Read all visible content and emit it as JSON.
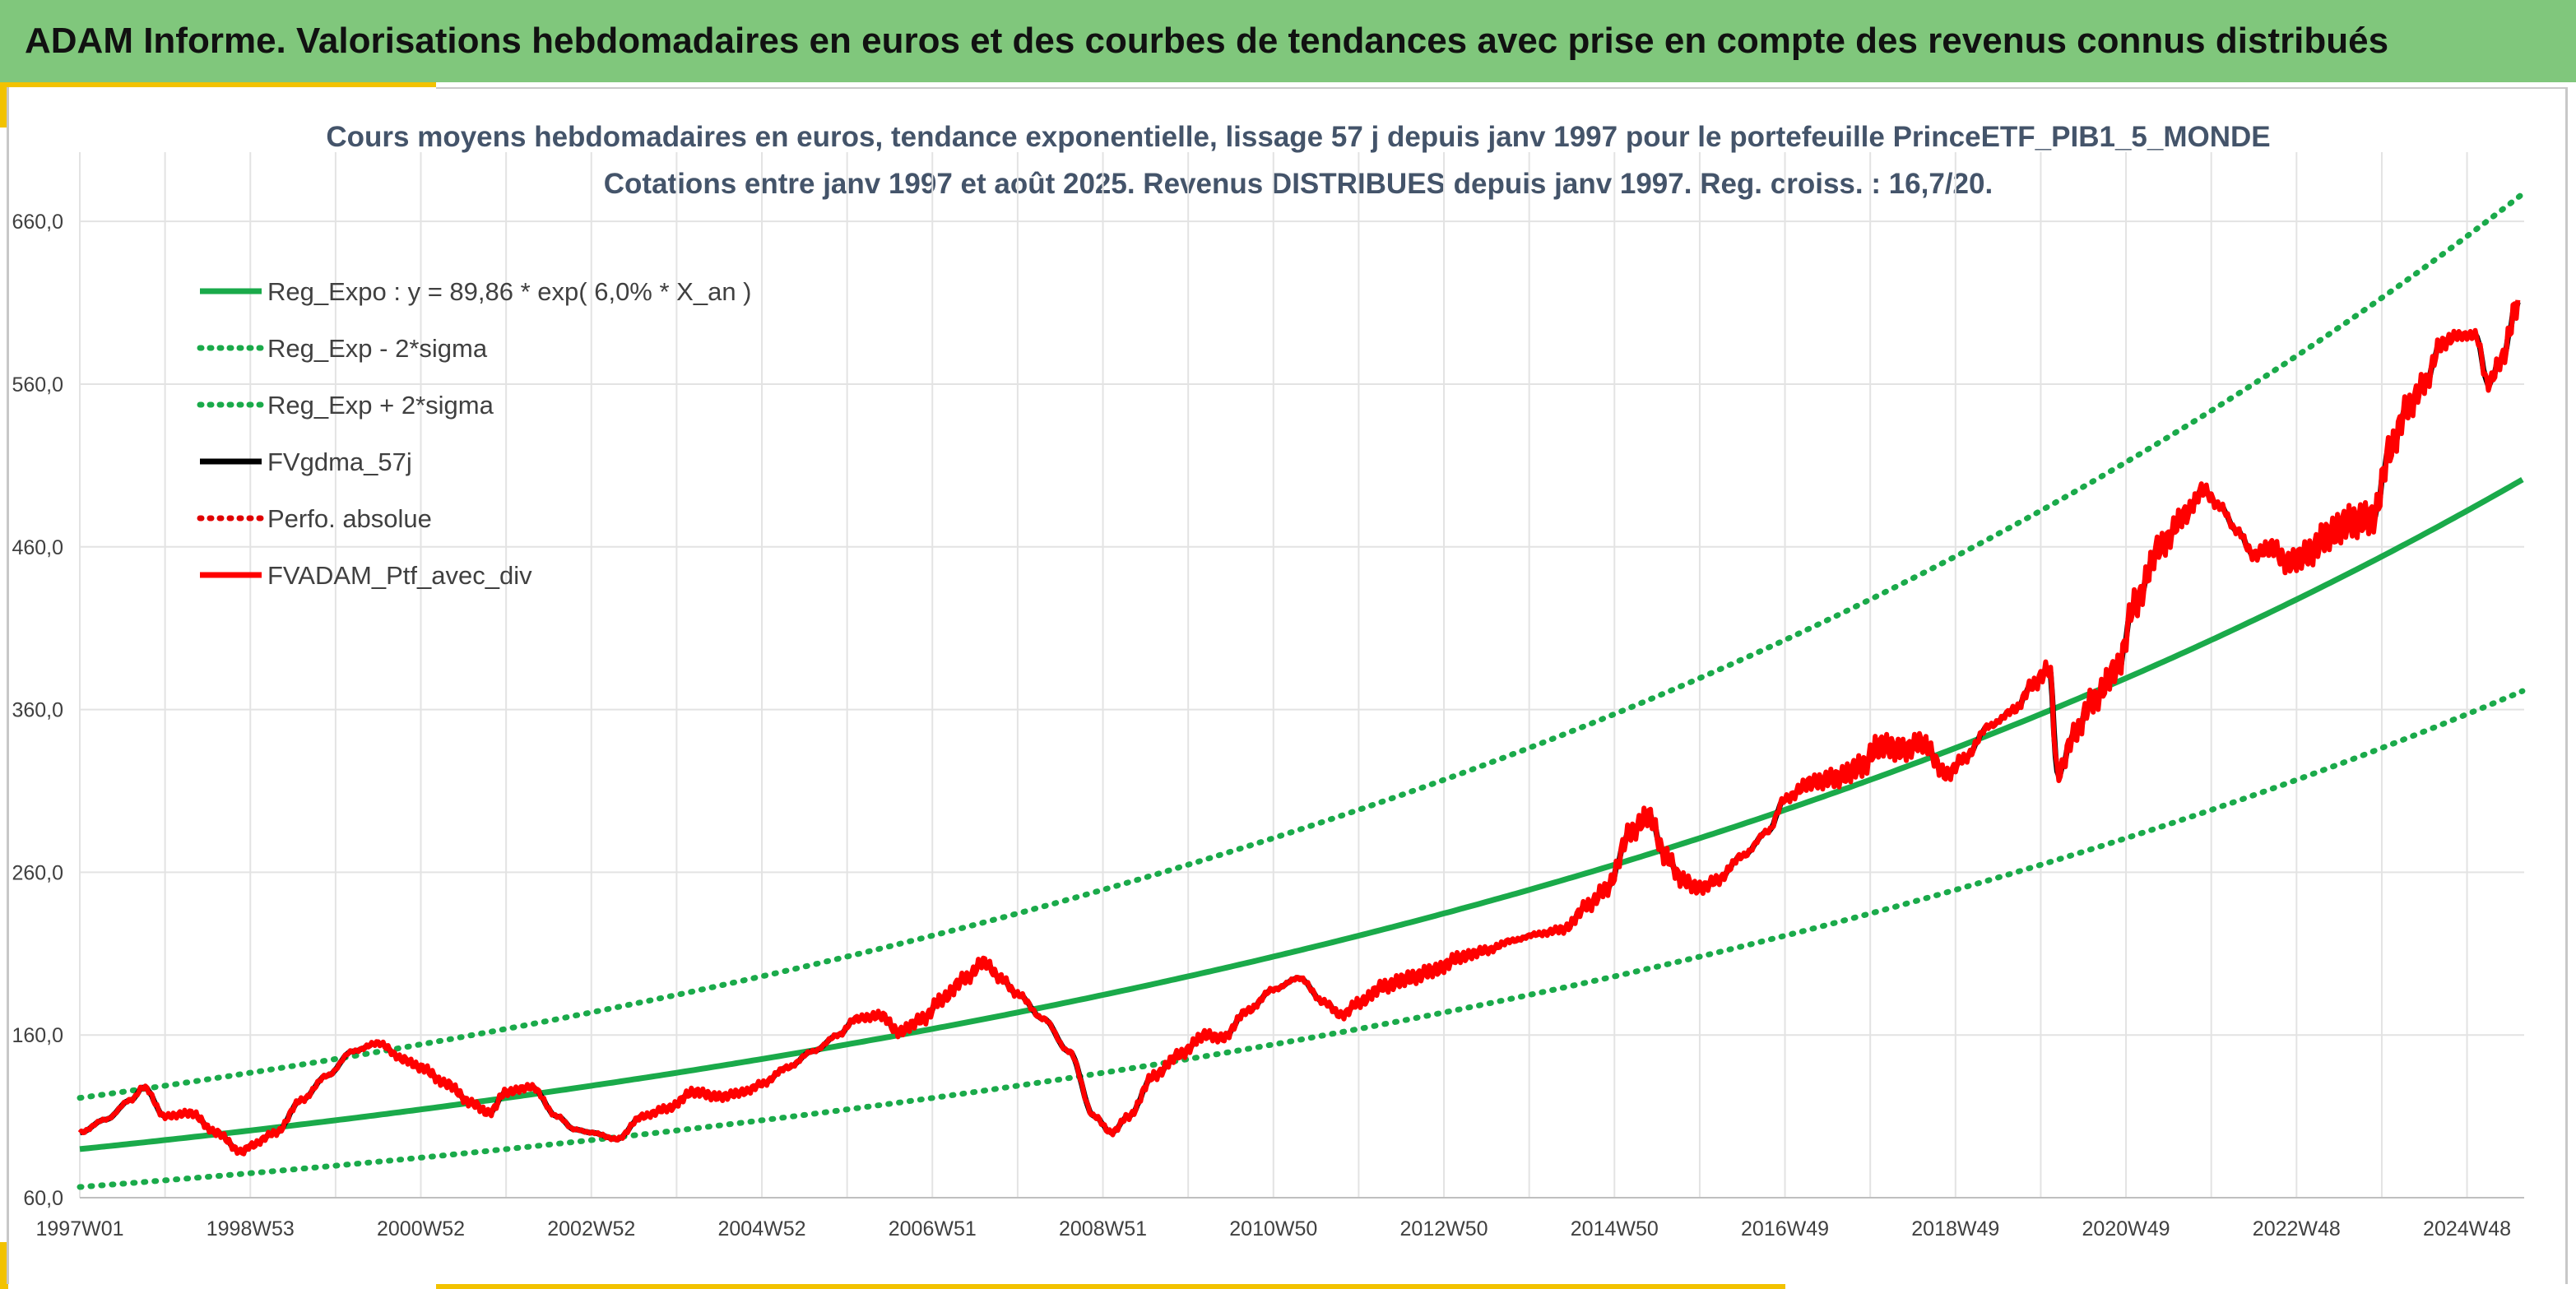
{
  "header": {
    "title": "ADAM Informe. Valorisations hebdomadaires en euros et des courbes de tendances avec prise en compte des revenus connus distribués"
  },
  "colors": {
    "header_bg": "#80c77c",
    "frame_accent": "#f2c200",
    "reg_expo": "#1aaa4a",
    "fvgdma": "#000000",
    "perfo": "#e00000",
    "fvadam": "#ff0000"
  },
  "chart_data": {
    "type": "line",
    "title_line1": "Cours moyens hebdomadaires en euros, tendance exponentielle, lissage 57 j depuis janv 1997 pour le portefeuille PrinceETF_PIB1_5_MONDE",
    "title_line2": "Cotations entre janv 1997 et août 2025. Revenus DISTRIBUES depuis janv 1997. Reg. croiss. : 16,7/20.",
    "x_range": [
      1997.0,
      2025.67
    ],
    "ylim": [
      60,
      700
    ],
    "y_ticks": [
      60,
      160,
      260,
      360,
      460,
      560,
      660
    ],
    "y_tick_labels": [
      "60,0",
      "160,0",
      "260,0",
      "360,0",
      "460,0",
      "560,0",
      "660,0"
    ],
    "x_ticks": [
      {
        "label": "1997W01",
        "year": 1997.0
      },
      {
        "label": "1998W53",
        "year": 1999.0
      },
      {
        "label": "2000W52",
        "year": 2001.0
      },
      {
        "label": "2002W52",
        "year": 2003.0
      },
      {
        "label": "2004W52",
        "year": 2005.0
      },
      {
        "label": "2006W51",
        "year": 2007.0
      },
      {
        "label": "2008W51",
        "year": 2009.0
      },
      {
        "label": "2010W50",
        "year": 2011.0
      },
      {
        "label": "2012W50",
        "year": 2013.0
      },
      {
        "label": "2014W50",
        "year": 2015.0
      },
      {
        "label": "2016W49",
        "year": 2017.0
      },
      {
        "label": "2018W49",
        "year": 2019.0
      },
      {
        "label": "2020W49",
        "year": 2021.0
      },
      {
        "label": "2022W48",
        "year": 2023.0
      },
      {
        "label": "2024W48",
        "year": 2025.0
      }
    ],
    "grid": true,
    "legend_position": "top-left",
    "regression": {
      "a": 89.86,
      "rate": 0.06,
      "sigma_factor": 1.35
    },
    "series": [
      {
        "name": "Reg_Expo : y = 89,86 * exp( 6,0% *  X_an )",
        "key": "reg_expo",
        "style": "solid",
        "color": "#1aaa4a"
      },
      {
        "name": "Reg_Exp - 2*sigma",
        "key": "reg_minus",
        "style": "dotted",
        "color": "#1aaa4a"
      },
      {
        "name": "Reg_Exp + 2*sigma",
        "key": "reg_plus",
        "style": "dotted",
        "color": "#1aaa4a"
      },
      {
        "name": "FVgdma_57j",
        "key": "fvgdma",
        "style": "solid",
        "color": "#000000"
      },
      {
        "name": "Perfo. absolue",
        "key": "perfo",
        "style": "dotted",
        "color": "#e00000"
      },
      {
        "name": "FVADAM_Ptf_avec_div",
        "key": "fvadam",
        "style": "solid",
        "color": "#ff0000"
      }
    ],
    "portfolio_points": [
      [
        1997.0,
        100
      ],
      [
        1997.3,
        108
      ],
      [
        1997.6,
        120
      ],
      [
        1997.75,
        128
      ],
      [
        1998.0,
        110
      ],
      [
        1998.3,
        112
      ],
      [
        1998.6,
        100
      ],
      [
        1998.9,
        88
      ],
      [
        1999.0,
        92
      ],
      [
        1999.3,
        100
      ],
      [
        1999.6,
        120
      ],
      [
        1999.9,
        135
      ],
      [
        2000.2,
        150
      ],
      [
        2000.5,
        155
      ],
      [
        2000.8,
        145
      ],
      [
        2001.0,
        140
      ],
      [
        2001.3,
        130
      ],
      [
        2001.6,
        118
      ],
      [
        2001.8,
        112
      ],
      [
        2002.0,
        125
      ],
      [
        2002.3,
        128
      ],
      [
        2002.6,
        110
      ],
      [
        2002.8,
        102
      ],
      [
        2003.0,
        100
      ],
      [
        2003.3,
        96
      ],
      [
        2003.6,
        110
      ],
      [
        2003.9,
        115
      ],
      [
        2004.2,
        125
      ],
      [
        2004.5,
        122
      ],
      [
        2004.8,
        125
      ],
      [
        2005.0,
        130
      ],
      [
        2005.3,
        140
      ],
      [
        2005.6,
        150
      ],
      [
        2005.9,
        160
      ],
      [
        2006.1,
        170
      ],
      [
        2006.4,
        172
      ],
      [
        2006.6,
        162
      ],
      [
        2006.9,
        170
      ],
      [
        2007.1,
        182
      ],
      [
        2007.4,
        195
      ],
      [
        2007.6,
        205
      ],
      [
        2007.8,
        195
      ],
      [
        2008.0,
        185
      ],
      [
        2008.3,
        170
      ],
      [
        2008.6,
        150
      ],
      [
        2008.9,
        110
      ],
      [
        2009.1,
        100
      ],
      [
        2009.3,
        110
      ],
      [
        2009.6,
        135
      ],
      [
        2009.9,
        148
      ],
      [
        2010.2,
        160
      ],
      [
        2010.4,
        158
      ],
      [
        2010.7,
        175
      ],
      [
        2011.0,
        188
      ],
      [
        2011.3,
        195
      ],
      [
        2011.6,
        180
      ],
      [
        2011.8,
        172
      ],
      [
        2012.0,
        180
      ],
      [
        2012.3,
        190
      ],
      [
        2012.6,
        195
      ],
      [
        2012.9,
        200
      ],
      [
        2013.2,
        208
      ],
      [
        2013.5,
        212
      ],
      [
        2013.8,
        218
      ],
      [
        2014.1,
        222
      ],
      [
        2014.4,
        225
      ],
      [
        2014.7,
        240
      ],
      [
        2014.9,
        250
      ],
      [
        2015.2,
        285
      ],
      [
        2015.4,
        295
      ],
      [
        2015.6,
        270
      ],
      [
        2015.8,
        255
      ],
      [
        2016.0,
        250
      ],
      [
        2016.2,
        255
      ],
      [
        2016.5,
        270
      ],
      [
        2016.8,
        285
      ],
      [
        2017.0,
        305
      ],
      [
        2017.3,
        315
      ],
      [
        2017.6,
        318
      ],
      [
        2017.9,
        325
      ],
      [
        2018.1,
        338
      ],
      [
        2018.4,
        335
      ],
      [
        2018.6,
        340
      ],
      [
        2018.9,
        320
      ],
      [
        2019.1,
        330
      ],
      [
        2019.4,
        350
      ],
      [
        2019.7,
        360
      ],
      [
        2019.9,
        375
      ],
      [
        2020.1,
        385
      ],
      [
        2020.2,
        320
      ],
      [
        2020.4,
        345
      ],
      [
        2020.6,
        365
      ],
      [
        2020.9,
        385
      ],
      [
        2021.1,
        425
      ],
      [
        2021.4,
        460
      ],
      [
        2021.7,
        480
      ],
      [
        2021.9,
        495
      ],
      [
        2022.1,
        485
      ],
      [
        2022.3,
        470
      ],
      [
        2022.5,
        455
      ],
      [
        2022.7,
        460
      ],
      [
        2022.9,
        450
      ],
      [
        2023.1,
        455
      ],
      [
        2023.4,
        468
      ],
      [
        2023.6,
        475
      ],
      [
        2023.9,
        478
      ],
      [
        2024.1,
        520
      ],
      [
        2024.3,
        545
      ],
      [
        2024.5,
        560
      ],
      [
        2024.7,
        585
      ],
      [
        2024.9,
        590
      ],
      [
        2025.1,
        590
      ],
      [
        2025.25,
        560
      ],
      [
        2025.4,
        575
      ],
      [
        2025.6,
        610
      ]
    ]
  },
  "legend_labels": {
    "reg_expo": "Reg_Expo : y = 89,86 * exp( 6,0% *  X_an )",
    "reg_minus": "Reg_Exp - 2*sigma",
    "reg_plus": "Reg_Exp + 2*sigma",
    "fvgdma": "FVgdma_57j",
    "perfo": "Perfo. absolue",
    "fvadam": "FVADAM_Ptf_avec_div"
  }
}
